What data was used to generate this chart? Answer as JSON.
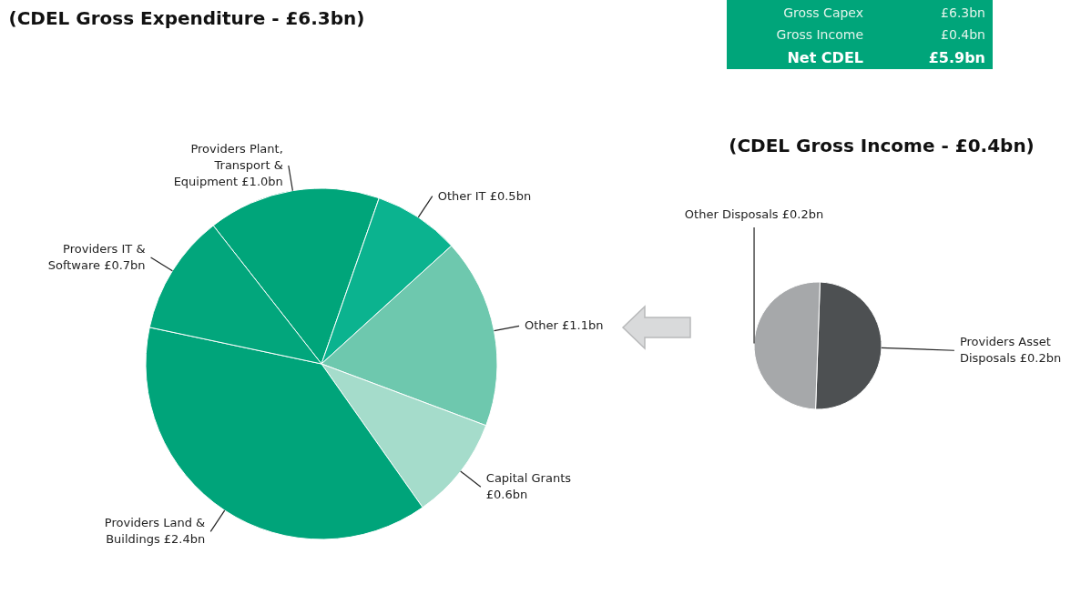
{
  "chart_data": [
    {
      "type": "pie",
      "title": "(CDEL Gross Expenditure - £6.3bn)",
      "categories": [
        "Providers Plant, Transport & Equipment",
        "Other IT",
        "Other",
        "Capital Grants",
        "Providers Land & Buildings",
        "Providers IT & Software"
      ],
      "values": [
        1.0,
        0.5,
        1.1,
        0.6,
        2.4,
        0.7
      ],
      "value_labels": [
        "£1.0bn",
        "£0.5bn",
        "£1.1bn",
        "£0.6bn",
        "£2.4bn",
        "£0.7bn"
      ],
      "colors": [
        "#00a57a",
        "#0bb38f",
        "#6ec8ae",
        "#a5dccb",
        "#00a47a",
        "#02a67c"
      ],
      "legend": false
    },
    {
      "type": "other",
      "annotations": [
        "Gross Capex",
        "£6.3bn",
        "Gross Income",
        "£0.4bn",
        "Net CDEL",
        "£5.9bn"
      ]
    },
    {
      "type": "pie",
      "title": "(CDEL Gross Income - £0.4bn)",
      "categories": [
        "Providers Asset Disposals",
        "Other Disposals"
      ],
      "values": [
        0.2,
        0.2
      ],
      "value_labels": [
        "£0.2bn",
        "£0.2bn"
      ],
      "colors": [
        "#4d5052",
        "#a6a8aa"
      ],
      "legend": false
    }
  ]
}
